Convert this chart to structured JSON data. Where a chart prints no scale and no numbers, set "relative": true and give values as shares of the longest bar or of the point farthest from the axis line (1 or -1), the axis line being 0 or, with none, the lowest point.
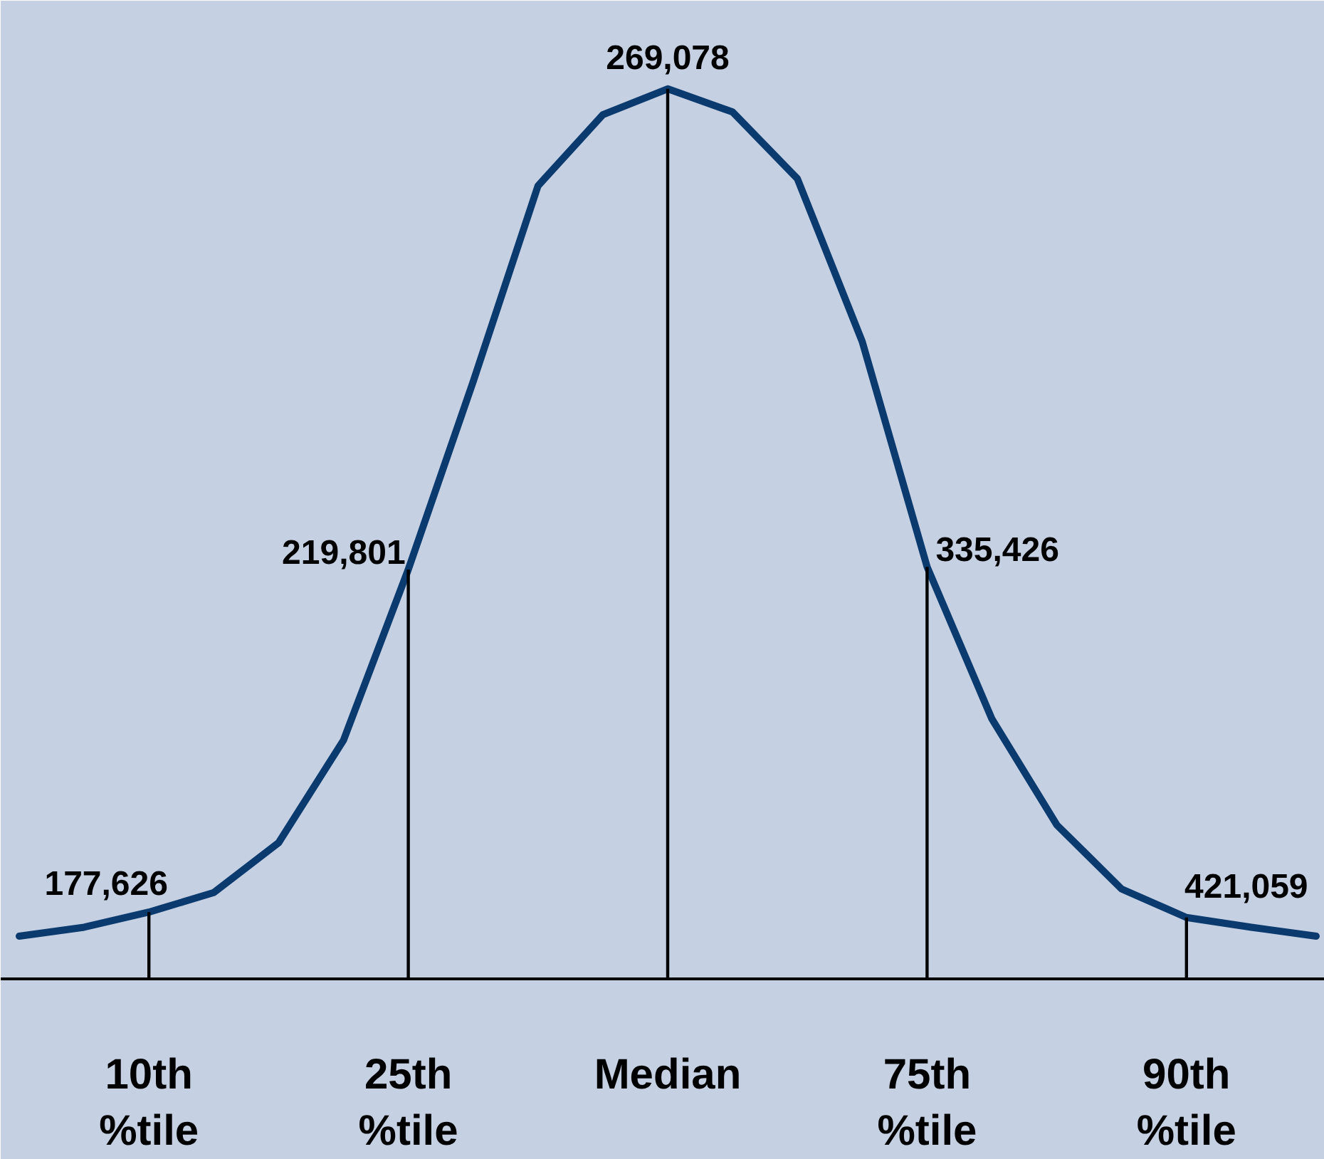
{
  "chart_data": {
    "type": "line",
    "relative": true,
    "categories": [
      null,
      null,
      "10th %tile",
      null,
      null,
      null,
      "25th %tile",
      null,
      null,
      null,
      "Median",
      null,
      null,
      null,
      "75th %tile",
      null,
      null,
      null,
      "90th %tile",
      null,
      null
    ],
    "series": [
      {
        "color": "#0b3a6e",
        "values": [
          0.048,
          0.058,
          0.075,
          0.097,
          0.153,
          0.268,
          0.46,
          0.671,
          0.891,
          0.971,
          1,
          0.974,
          0.899,
          0.716,
          0.463,
          0.292,
          0.173,
          0.101,
          0.069,
          0.058,
          0.048
        ]
      },
      {
        "type": "bar",
        "color": "#000000",
        "values": [
          null,
          null,
          0.075,
          null,
          null,
          null,
          0.46,
          null,
          null,
          null,
          1,
          null,
          null,
          null,
          0.463,
          null,
          null,
          null,
          0.069,
          null,
          null
        ]
      }
    ],
    "annotations": [
      {
        "text": "177,626",
        "x": "10th %tile",
        "y": 0.075
      },
      {
        "text": "219,801",
        "x": "25th %tile",
        "y": 0.46
      },
      {
        "text": "269,078",
        "x": "Median",
        "y": 1
      },
      {
        "text": "335,426",
        "x": "75th %tile",
        "y": 0.463
      },
      {
        "text": "421,059",
        "x": "90th %tile",
        "y": 0.069
      }
    ]
  }
}
